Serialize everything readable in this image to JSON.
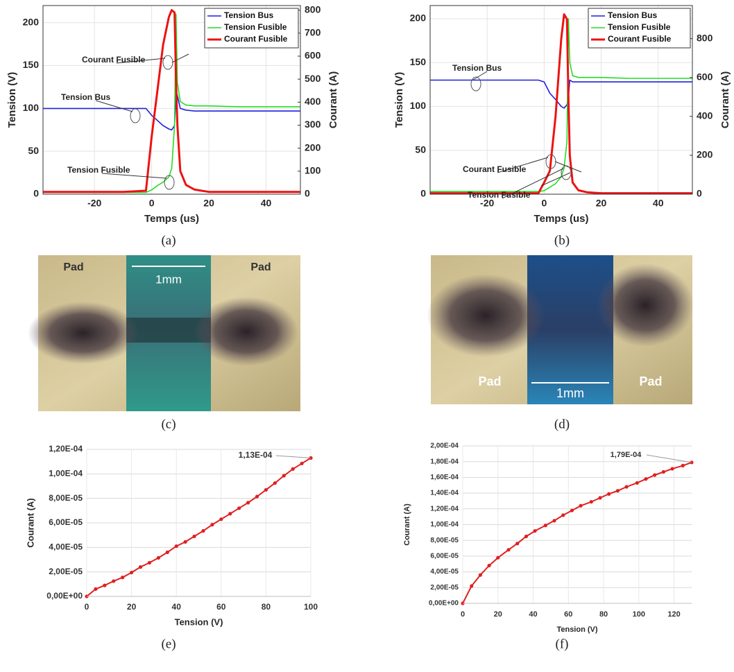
{
  "chart_data": [
    {
      "type": "line",
      "caption": "(a)",
      "xlabel": "Temps (us)",
      "ylabel": "Tension (V)",
      "y2label": "Courant (A)",
      "x": [
        -38,
        -30,
        -20,
        -10,
        -2,
        0,
        2,
        4,
        6,
        7,
        8,
        8.5,
        9,
        10,
        12,
        15,
        20,
        30,
        40,
        52
      ],
      "xlim": [
        -38,
        52
      ],
      "xticks": [
        -20,
        0,
        20,
        40
      ],
      "ylim": [
        0,
        220
      ],
      "yticks": [
        0,
        50,
        100,
        150,
        200
      ],
      "y2lim": [
        0,
        820
      ],
      "y2ticks": [
        0,
        100,
        200,
        300,
        400,
        500,
        600,
        700,
        800
      ],
      "grid": true,
      "legend": "upper right",
      "series": [
        {
          "name": "Tension Bus",
          "color": "#1f1fe0",
          "values": [
            100,
            100,
            100,
            100,
            100,
            92,
            86,
            80,
            76,
            75,
            80,
            120,
            115,
            100,
            98,
            97,
            97,
            97,
            97,
            97
          ]
        },
        {
          "name": "Tension Fusible",
          "color": "#22dd22",
          "values": [
            2,
            2,
            2,
            2,
            2,
            5,
            10,
            14,
            20,
            30,
            80,
            210,
            130,
            108,
            104,
            103,
            103,
            102,
            102,
            102
          ]
        },
        {
          "name": "Courant Fusible",
          "color": "#ee1111",
          "axis": "y2",
          "values": [
            10,
            10,
            10,
            10,
            15,
            250,
            450,
            650,
            770,
            800,
            790,
            500,
            300,
            100,
            40,
            20,
            10,
            10,
            10,
            10
          ]
        }
      ],
      "annotations": [
        "Courant Fusible",
        "Tension Bus",
        "Tension Fusible"
      ]
    },
    {
      "type": "line",
      "caption": "(b)",
      "xlabel": "Temps (us)",
      "ylabel": "Tension (V)",
      "y2label": "Courant (A)",
      "x": [
        -40,
        -30,
        -20,
        -10,
        -2,
        0,
        2,
        4,
        6,
        7,
        8,
        8.5,
        9,
        10,
        12,
        15,
        20,
        30,
        40,
        52
      ],
      "xlim": [
        -40,
        52
      ],
      "xticks": [
        -20,
        0,
        20,
        40
      ],
      "ylim": [
        0,
        215
      ],
      "yticks": [
        0,
        50,
        100,
        150,
        200
      ],
      "y2lim": [
        0,
        970
      ],
      "y2ticks": [
        0,
        200,
        400,
        600,
        800
      ],
      "grid": true,
      "legend": "upper right",
      "series": [
        {
          "name": "Tension Bus",
          "color": "#1f1fe0",
          "values": [
            130,
            130,
            130,
            130,
            130,
            128,
            115,
            108,
            100,
            98,
            102,
            110,
            130,
            128,
            128,
            128,
            128,
            128,
            128,
            128
          ]
        },
        {
          "name": "Tension Fusible",
          "color": "#22dd22",
          "values": [
            3,
            3,
            3,
            3,
            3,
            4,
            8,
            12,
            20,
            30,
            60,
            200,
            150,
            135,
            133,
            133,
            133,
            132,
            132,
            132
          ]
        },
        {
          "name": "Courant Fusible",
          "color": "#ee1111",
          "axis": "y2",
          "values": [
            5,
            5,
            5,
            5,
            5,
            60,
            120,
            400,
            800,
            925,
            900,
            500,
            200,
            60,
            20,
            10,
            5,
            5,
            5,
            5
          ]
        }
      ],
      "annotations": [
        "Tension Bus",
        "Courant Fusible",
        "Tension Fusible"
      ]
    },
    {
      "type": "line",
      "caption": "(e)",
      "xlabel": "Tension (V)",
      "ylabel": "Courant (A)",
      "x": [
        0,
        4,
        8,
        12,
        16,
        20,
        24,
        28,
        32,
        36,
        40,
        44,
        48,
        52,
        56,
        60,
        64,
        68,
        72,
        76,
        80,
        84,
        88,
        92,
        96,
        100
      ],
      "xlim": [
        0,
        100
      ],
      "xticks": [
        0,
        20,
        40,
        60,
        80,
        100
      ],
      "ylim": [
        0,
        0.00012
      ],
      "yticks": [
        {
          "value": 0,
          "label": "0,00E+00"
        },
        {
          "value": 2e-05,
          "label": "2,00E-05"
        },
        {
          "value": 4e-05,
          "label": "4,00E-05"
        },
        {
          "value": 6e-05,
          "label": "6,00E-05"
        },
        {
          "value": 8e-05,
          "label": "8,00E-05"
        },
        {
          "value": 0.0001,
          "label": "1,00E-04"
        },
        {
          "value": 0.00012,
          "label": "1,20E-04"
        }
      ],
      "grid": true,
      "markers": true,
      "series": [
        {
          "color": "#e02020",
          "values": [
            0,
            6e-06,
            9e-06,
            1.25e-05,
            1.55e-05,
            1.95e-05,
            2.4e-05,
            2.75e-05,
            3.15e-05,
            3.6e-05,
            4.1e-05,
            4.45e-05,
            4.9e-05,
            5.35e-05,
            5.85e-05,
            6.3e-05,
            6.75e-05,
            7.2e-05,
            7.65e-05,
            8.15e-05,
            8.7e-05,
            9.25e-05,
            9.85e-05,
            0.000104,
            0.0001085,
            0.000113
          ],
          "value_labels": [
            null,
            null,
            null,
            null,
            null,
            null,
            null,
            null,
            null,
            null,
            null,
            null,
            null,
            null,
            null,
            null,
            null,
            null,
            null,
            null,
            null,
            null,
            null,
            null,
            null,
            "1,13E-04"
          ]
        }
      ]
    },
    {
      "type": "line",
      "caption": "(f)",
      "xlabel": "Tension (V)",
      "ylabel": "Courant (A)",
      "x": [
        0,
        5,
        10,
        15,
        20,
        26,
        31,
        36,
        41,
        47,
        52,
        57,
        62,
        67,
        73,
        78,
        83,
        88,
        93,
        99,
        104,
        109,
        114,
        119,
        125,
        130
      ],
      "xlim": [
        0,
        130
      ],
      "xticks": [
        0,
        20,
        40,
        60,
        80,
        100,
        120
      ],
      "ylim": [
        0,
        0.0002
      ],
      "yticks": [
        {
          "value": 0,
          "label": "0,00E+00"
        },
        {
          "value": 2e-05,
          "label": "2,00E-05"
        },
        {
          "value": 4e-05,
          "label": "4,00E-05"
        },
        {
          "value": 6e-05,
          "label": "6,00E-05"
        },
        {
          "value": 8e-05,
          "label": "8,00E-05"
        },
        {
          "value": 0.0001,
          "label": "1,00E-04"
        },
        {
          "value": 0.00012,
          "label": "1,20E-04"
        },
        {
          "value": 0.00014,
          "label": "1,40E-04"
        },
        {
          "value": 0.00016,
          "label": "1,60E-04"
        },
        {
          "value": 0.00018,
          "label": "1,80E-04"
        },
        {
          "value": 0.0002,
          "label": "2,00E-04"
        }
      ],
      "grid": true,
      "markers": true,
      "series": [
        {
          "color": "#e02020",
          "values": [
            0,
            2.2e-05,
            3.6e-05,
            4.8e-05,
            5.8e-05,
            6.8e-05,
            7.6e-05,
            8.5e-05,
            9.2e-05,
            9.9e-05,
            0.000105,
            0.000112,
            0.000118,
            0.000124,
            0.000129,
            0.000134,
            0.000139,
            0.000143,
            0.000148,
            0.000153,
            0.000158,
            0.000163,
            0.000167,
            0.000171,
            0.000175,
            0.000179
          ],
          "value_labels": [
            null,
            null,
            null,
            null,
            null,
            null,
            null,
            null,
            null,
            null,
            null,
            null,
            null,
            null,
            null,
            null,
            null,
            null,
            null,
            null,
            null,
            null,
            null,
            null,
            null,
            "1,79E-04"
          ]
        }
      ]
    }
  ],
  "photos": [
    {
      "caption": "(c)",
      "labels": [
        "Pad",
        "Pad",
        "1mm"
      ]
    },
    {
      "caption": "(d)",
      "labels": [
        "Pad",
        "Pad",
        "1mm"
      ]
    }
  ]
}
